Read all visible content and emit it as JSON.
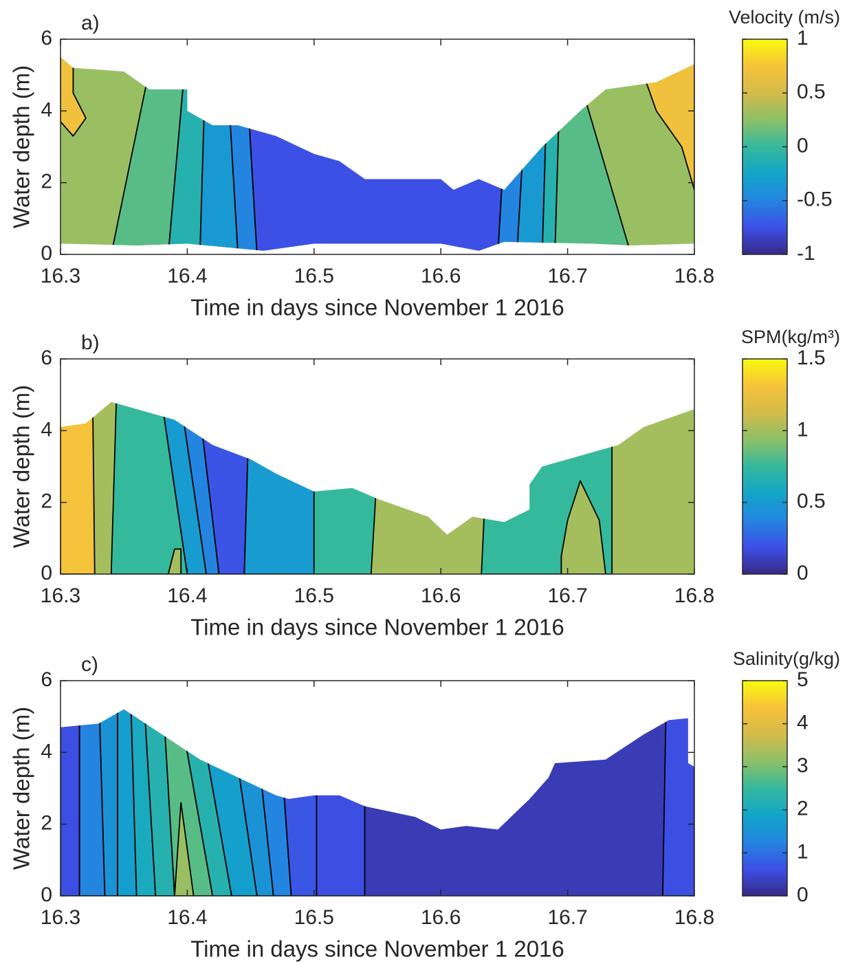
{
  "chart_data": [
    {
      "type": "contour",
      "title": "a)",
      "xlabel": "Time in days since November 1 2016",
      "ylabel": "Water depth (m)",
      "colorbar_label": "Velocity (m/s)",
      "xlim": [
        16.3,
        16.8
      ],
      "xticks": [
        16.3,
        16.4,
        16.5,
        16.6,
        16.7,
        16.8
      ],
      "ylim": [
        0,
        6
      ],
      "yticks": [
        0,
        2,
        4,
        6
      ],
      "clim": [
        -1,
        1
      ],
      "cticks": [
        -1,
        -0.5,
        0,
        0.5,
        1
      ],
      "colormap": [
        "#352a87",
        "#3d50e6",
        "#2385e0",
        "#12a6c8",
        "#35b99c",
        "#8cc068",
        "#d3bb4a",
        "#f6c33a",
        "#f9fb0e"
      ],
      "outline": {
        "x": [
          16.3,
          16.31,
          16.35,
          16.37,
          16.4,
          16.4,
          16.42,
          16.44,
          16.47,
          16.5,
          16.52,
          16.54,
          16.6,
          16.61,
          16.63,
          16.65,
          16.68,
          16.71,
          16.73,
          16.77,
          16.8,
          16.8,
          16.75,
          16.72,
          16.65,
          16.63,
          16.6,
          16.5,
          16.46,
          16.4,
          16.36,
          16.3
        ],
        "y": [
          5.5,
          5.2,
          5.1,
          4.6,
          4.6,
          4.0,
          3.6,
          3.6,
          3.3,
          2.8,
          2.6,
          2.1,
          2.1,
          1.8,
          2.1,
          1.8,
          3.0,
          4.0,
          4.6,
          4.8,
          5.3,
          0.3,
          0.25,
          0.3,
          0.35,
          0.1,
          0.3,
          0.3,
          0.1,
          0.3,
          0.25,
          0.3
        ]
      },
      "regions": [
        {
          "level": 0.3,
          "x": [
            16.3,
            16.8,
            16.8,
            16.3
          ],
          "y": [
            0,
            0,
            6,
            6
          ]
        },
        {
          "level": 0.7,
          "x": [
            16.3,
            16.31,
            16.32,
            16.31,
            16.31,
            16.3
          ],
          "y": [
            3.7,
            3.3,
            3.8,
            4.5,
            6,
            6
          ]
        },
        {
          "level": 0.1,
          "x": [
            16.34,
            16.385,
            16.4,
            16.375
          ],
          "y": [
            0,
            0,
            6,
            6
          ]
        },
        {
          "level": -0.1,
          "x": [
            16.385,
            16.41,
            16.415,
            16.4
          ],
          "y": [
            0,
            0,
            6,
            6
          ]
        },
        {
          "level": -0.35,
          "x": [
            16.41,
            16.44,
            16.43,
            16.415
          ],
          "y": [
            0,
            0,
            6,
            6
          ]
        },
        {
          "level": -0.5,
          "x": [
            16.44,
            16.455,
            16.445,
            16.43
          ],
          "y": [
            0,
            0,
            6,
            6
          ]
        },
        {
          "level": -0.75,
          "x": [
            16.455,
            16.645,
            16.655,
            16.445
          ],
          "y": [
            0,
            0,
            6,
            6
          ]
        },
        {
          "level": -0.5,
          "x": [
            16.645,
            16.66,
            16.67,
            16.655
          ],
          "y": [
            0,
            0,
            6,
            6
          ]
        },
        {
          "level": -0.35,
          "x": [
            16.66,
            16.68,
            16.685,
            16.67
          ],
          "y": [
            0,
            0,
            6,
            6
          ]
        },
        {
          "level": -0.1,
          "x": [
            16.68,
            16.69,
            16.695,
            16.685
          ],
          "y": [
            0,
            0,
            6,
            6
          ]
        },
        {
          "level": 0.1,
          "x": [
            16.69,
            16.75,
            16.7,
            16.695
          ],
          "y": [
            0,
            0,
            6,
            6
          ]
        },
        {
          "level": 0.7,
          "x": [
            16.8,
            16.79,
            16.77,
            16.75,
            16.8
          ],
          "y": [
            1.8,
            3,
            4,
            6,
            6
          ]
        }
      ]
    },
    {
      "type": "contour",
      "title": "b)",
      "xlabel": "Time in days since November 1 2016",
      "ylabel": "Water depth (m)",
      "colorbar_label": "SPM(kg/m³)",
      "xlim": [
        16.3,
        16.8
      ],
      "xticks": [
        16.3,
        16.4,
        16.5,
        16.6,
        16.7,
        16.8
      ],
      "ylim": [
        0,
        6
      ],
      "yticks": [
        0,
        2,
        4,
        6
      ],
      "clim": [
        0,
        1.5
      ],
      "cticks": [
        0,
        0.5,
        1,
        1.5
      ],
      "colormap": [
        "#352a87",
        "#3d50e6",
        "#2385e0",
        "#12a6c8",
        "#35b99c",
        "#8cc068",
        "#d3bb4a",
        "#f6c33a",
        "#f9fb0e"
      ],
      "outline": {
        "x": [
          16.3,
          16.32,
          16.34,
          16.37,
          16.39,
          16.42,
          16.45,
          16.47,
          16.5,
          16.53,
          16.55,
          16.59,
          16.605,
          16.625,
          16.65,
          16.67,
          16.67,
          16.68,
          16.7,
          16.74,
          16.76,
          16.8,
          16.8,
          16.3
        ],
        "y": [
          4.1,
          4.2,
          4.8,
          4.5,
          4.3,
          3.6,
          3.2,
          2.8,
          2.3,
          2.4,
          2.1,
          1.6,
          1.1,
          1.6,
          1.45,
          1.8,
          2.5,
          3.0,
          3.2,
          3.6,
          4.1,
          4.6,
          0,
          0
        ]
      },
      "regions": [
        {
          "level": 1.0,
          "x": [
            16.3,
            16.8,
            16.8,
            16.3
          ],
          "y": [
            0,
            0,
            6,
            6
          ]
        },
        {
          "level": 1.3,
          "x": [
            16.3,
            16.327,
            16.325,
            16.3
          ],
          "y": [
            0,
            0,
            6,
            6
          ]
        },
        {
          "level": 0.75,
          "x": [
            16.34,
            16.4,
            16.375,
            16.345
          ],
          "y": [
            0,
            0,
            6,
            6
          ]
        },
        {
          "level": 0.5,
          "x": [
            16.4,
            16.415,
            16.39,
            16.375
          ],
          "y": [
            0,
            0,
            6,
            6
          ]
        },
        {
          "level": 0.375,
          "x": [
            16.415,
            16.425,
            16.405,
            16.39
          ],
          "y": [
            0,
            0,
            6,
            6
          ]
        },
        {
          "level": 0.2,
          "x": [
            16.425,
            16.445,
            16.45,
            16.405
          ],
          "y": [
            0,
            0,
            6,
            6
          ]
        },
        {
          "level": 0.5,
          "x": [
            16.445,
            16.5,
            16.5,
            16.45
          ],
          "y": [
            0,
            0,
            6,
            6
          ]
        },
        {
          "level": 0.75,
          "x": [
            16.5,
            16.545,
            16.555,
            16.5
          ],
          "y": [
            0,
            0,
            6,
            6
          ]
        },
        {
          "level": 0.75,
          "x": [
            16.632,
            16.735,
            16.735,
            16.64
          ],
          "y": [
            0,
            0,
            6,
            6
          ]
        },
        {
          "level": 1.0,
          "x": [
            16.695,
            16.73,
            16.725,
            16.71,
            16.7,
            16.695
          ],
          "y": [
            0,
            0,
            1.5,
            2.6,
            1.5,
            0.5
          ]
        },
        {
          "level": 1.0,
          "x": [
            16.385,
            16.395,
            16.395,
            16.39
          ],
          "y": [
            0,
            0,
            0.7,
            0.7
          ]
        }
      ]
    },
    {
      "type": "contour",
      "title": "c)",
      "xlabel": "Time in days since November 1 2016",
      "ylabel": "Water depth (m)",
      "colorbar_label": "Salinity(g/kg)",
      "xlim": [
        16.3,
        16.8
      ],
      "xticks": [
        16.3,
        16.4,
        16.5,
        16.6,
        16.7,
        16.8
      ],
      "ylim": [
        0,
        6
      ],
      "yticks": [
        0,
        2,
        4,
        6
      ],
      "clim": [
        0,
        5
      ],
      "cticks": [
        0,
        1,
        2,
        3,
        4,
        5
      ],
      "colormap": [
        "#352a87",
        "#3d50e6",
        "#2385e0",
        "#12a6c8",
        "#35b99c",
        "#8cc068",
        "#d3bb4a",
        "#f6c33a",
        "#f9fb0e"
      ],
      "outline": {
        "x": [
          16.3,
          16.33,
          16.35,
          16.38,
          16.41,
          16.44,
          16.47,
          16.48,
          16.5,
          16.52,
          16.54,
          16.58,
          16.6,
          16.62,
          16.645,
          16.67,
          16.685,
          16.69,
          16.73,
          16.76,
          16.78,
          16.795,
          16.795,
          16.8,
          16.8,
          16.3
        ],
        "y": [
          4.7,
          4.8,
          5.2,
          4.5,
          3.8,
          3.3,
          2.8,
          2.7,
          2.8,
          2.8,
          2.5,
          2.2,
          1.85,
          1.95,
          1.85,
          2.7,
          3.3,
          3.7,
          3.8,
          4.5,
          4.9,
          4.95,
          3.7,
          3.6,
          0,
          0
        ]
      },
      "regions": [
        {
          "level": 0.3,
          "x": [
            16.3,
            16.8,
            16.8,
            16.3
          ],
          "y": [
            0,
            0,
            6,
            6
          ]
        },
        {
          "level": 0.6,
          "x": [
            16.3,
            16.315,
            16.315,
            16.3
          ],
          "y": [
            0,
            0,
            6,
            6
          ]
        },
        {
          "level": 1.25,
          "x": [
            16.315,
            16.335,
            16.33,
            16.315
          ],
          "y": [
            0,
            0,
            6,
            6
          ]
        },
        {
          "level": 1.5,
          "x": [
            16.335,
            16.345,
            16.345,
            16.33
          ],
          "y": [
            0,
            0,
            6,
            6
          ]
        },
        {
          "level": 1.75,
          "x": [
            16.345,
            16.36,
            16.355,
            16.345
          ],
          "y": [
            0,
            0,
            6,
            6
          ]
        },
        {
          "level": 2.0,
          "x": [
            16.36,
            16.375,
            16.365,
            16.355
          ],
          "y": [
            0,
            0,
            6,
            6
          ]
        },
        {
          "level": 2.25,
          "x": [
            16.375,
            16.39,
            16.38,
            16.365
          ],
          "y": [
            0,
            0,
            6,
            6
          ]
        },
        {
          "level": 2.75,
          "x": [
            16.39,
            16.42,
            16.39,
            16.38
          ],
          "y": [
            0,
            0,
            6,
            6
          ]
        },
        {
          "level": 2.25,
          "x": [
            16.42,
            16.435,
            16.405,
            16.39
          ],
          "y": [
            0,
            0,
            6,
            6
          ]
        },
        {
          "level": 1.75,
          "x": [
            16.435,
            16.455,
            16.43,
            16.405
          ],
          "y": [
            0,
            0,
            6,
            6
          ]
        },
        {
          "level": 1.5,
          "x": [
            16.455,
            16.468,
            16.45,
            16.43
          ],
          "y": [
            0,
            0,
            6,
            6
          ]
        },
        {
          "level": 1.25,
          "x": [
            16.468,
            16.482,
            16.47,
            16.45
          ],
          "y": [
            0,
            0,
            6,
            6
          ]
        },
        {
          "level": 0.7,
          "x": [
            16.482,
            16.502,
            16.502,
            16.47
          ],
          "y": [
            0,
            0,
            6,
            6
          ]
        },
        {
          "level": 0.6,
          "x": [
            16.502,
            16.54,
            16.54,
            16.502
          ],
          "y": [
            0,
            0,
            6,
            6
          ]
        },
        {
          "level": 0.6,
          "x": [
            16.775,
            16.8,
            16.8,
            16.778
          ],
          "y": [
            0,
            0,
            6,
            6
          ]
        },
        {
          "level": 3.25,
          "x": [
            16.39,
            16.405,
            16.395
          ],
          "y": [
            0,
            0,
            2.6
          ]
        }
      ]
    }
  ]
}
